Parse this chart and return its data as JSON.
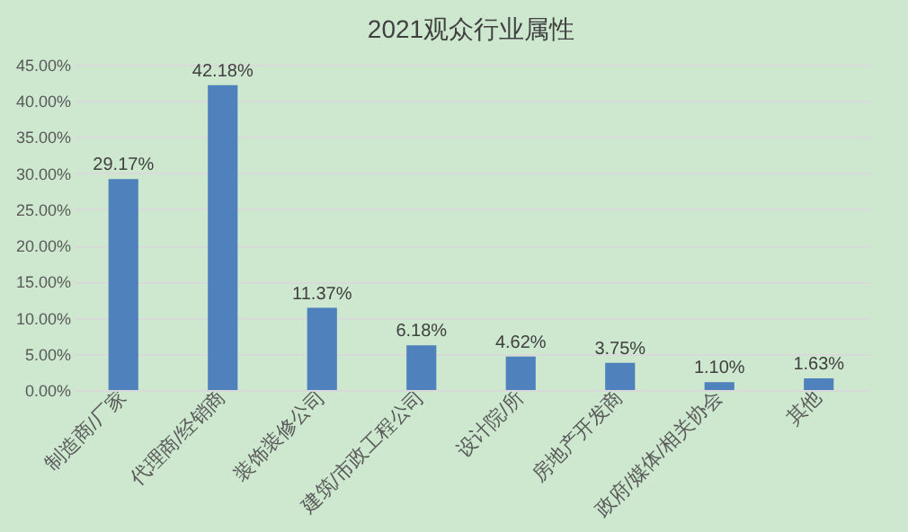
{
  "chart_data": {
    "type": "bar",
    "title": "2021观众行业属性",
    "categories": [
      "制造商/厂家",
      "代理商/经销商",
      "装饰装修公司",
      "建筑/市政工程公司",
      "设计院/所",
      "房地产开发商",
      "政府/媒体/相关协会",
      "其他"
    ],
    "values": [
      29.17,
      42.18,
      11.37,
      6.18,
      4.62,
      3.75,
      1.1,
      1.63
    ],
    "value_labels": [
      "29.17%",
      "42.18%",
      "11.37%",
      "6.18%",
      "4.62%",
      "3.75%",
      "1.10%",
      "1.63%"
    ],
    "color": "#4f81bd",
    "ylim": [
      0,
      45
    ],
    "yticks": [
      {
        "value": 0,
        "label": "0.00%"
      },
      {
        "value": 5,
        "label": "5.00%"
      },
      {
        "value": 10,
        "label": "10.00%"
      },
      {
        "value": 15,
        "label": "15.00%"
      },
      {
        "value": 20,
        "label": "20.00%"
      },
      {
        "value": 25,
        "label": "25.00%"
      },
      {
        "value": 30,
        "label": "30.00%"
      },
      {
        "value": 35,
        "label": "35.00%"
      },
      {
        "value": 40,
        "label": "40.00%"
      },
      {
        "value": 45,
        "label": "45.00%"
      }
    ],
    "grid": "y"
  }
}
